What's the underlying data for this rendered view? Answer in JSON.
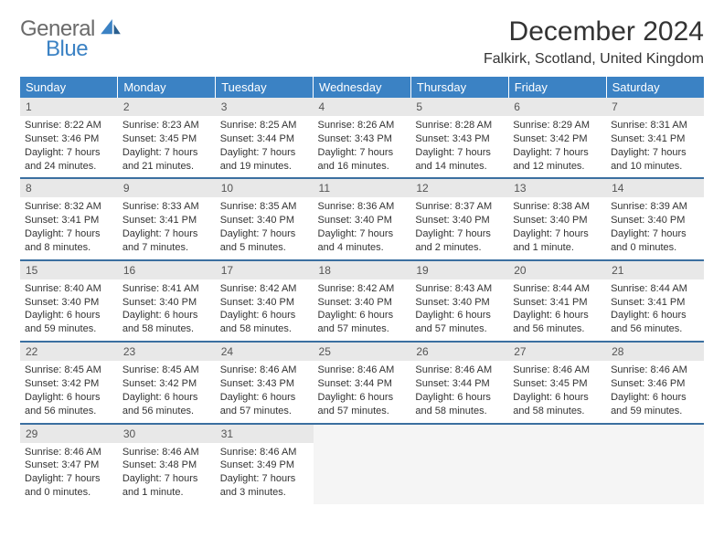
{
  "brand": {
    "general": "General",
    "blue": "Blue"
  },
  "title": "December 2024",
  "location": "Falkirk, Scotland, United Kingdom",
  "colors": {
    "header_bg": "#3b82c4",
    "header_fg": "#ffffff",
    "daynum_bg": "#e8e8e8",
    "rule": "#3b6fa0",
    "logo_gray": "#6b6b6b",
    "logo_blue": "#3b82c4"
  },
  "weekdays": [
    "Sunday",
    "Monday",
    "Tuesday",
    "Wednesday",
    "Thursday",
    "Friday",
    "Saturday"
  ],
  "days": [
    {
      "n": "1",
      "sr": "8:22 AM",
      "ss": "3:46 PM",
      "dl": "7 hours and 24 minutes."
    },
    {
      "n": "2",
      "sr": "8:23 AM",
      "ss": "3:45 PM",
      "dl": "7 hours and 21 minutes."
    },
    {
      "n": "3",
      "sr": "8:25 AM",
      "ss": "3:44 PM",
      "dl": "7 hours and 19 minutes."
    },
    {
      "n": "4",
      "sr": "8:26 AM",
      "ss": "3:43 PM",
      "dl": "7 hours and 16 minutes."
    },
    {
      "n": "5",
      "sr": "8:28 AM",
      "ss": "3:43 PM",
      "dl": "7 hours and 14 minutes."
    },
    {
      "n": "6",
      "sr": "8:29 AM",
      "ss": "3:42 PM",
      "dl": "7 hours and 12 minutes."
    },
    {
      "n": "7",
      "sr": "8:31 AM",
      "ss": "3:41 PM",
      "dl": "7 hours and 10 minutes."
    },
    {
      "n": "8",
      "sr": "8:32 AM",
      "ss": "3:41 PM",
      "dl": "7 hours and 8 minutes."
    },
    {
      "n": "9",
      "sr": "8:33 AM",
      "ss": "3:41 PM",
      "dl": "7 hours and 7 minutes."
    },
    {
      "n": "10",
      "sr": "8:35 AM",
      "ss": "3:40 PM",
      "dl": "7 hours and 5 minutes."
    },
    {
      "n": "11",
      "sr": "8:36 AM",
      "ss": "3:40 PM",
      "dl": "7 hours and 4 minutes."
    },
    {
      "n": "12",
      "sr": "8:37 AM",
      "ss": "3:40 PM",
      "dl": "7 hours and 2 minutes."
    },
    {
      "n": "13",
      "sr": "8:38 AM",
      "ss": "3:40 PM",
      "dl": "7 hours and 1 minute."
    },
    {
      "n": "14",
      "sr": "8:39 AM",
      "ss": "3:40 PM",
      "dl": "7 hours and 0 minutes."
    },
    {
      "n": "15",
      "sr": "8:40 AM",
      "ss": "3:40 PM",
      "dl": "6 hours and 59 minutes."
    },
    {
      "n": "16",
      "sr": "8:41 AM",
      "ss": "3:40 PM",
      "dl": "6 hours and 58 minutes."
    },
    {
      "n": "17",
      "sr": "8:42 AM",
      "ss": "3:40 PM",
      "dl": "6 hours and 58 minutes."
    },
    {
      "n": "18",
      "sr": "8:42 AM",
      "ss": "3:40 PM",
      "dl": "6 hours and 57 minutes."
    },
    {
      "n": "19",
      "sr": "8:43 AM",
      "ss": "3:40 PM",
      "dl": "6 hours and 57 minutes."
    },
    {
      "n": "20",
      "sr": "8:44 AM",
      "ss": "3:41 PM",
      "dl": "6 hours and 56 minutes."
    },
    {
      "n": "21",
      "sr": "8:44 AM",
      "ss": "3:41 PM",
      "dl": "6 hours and 56 minutes."
    },
    {
      "n": "22",
      "sr": "8:45 AM",
      "ss": "3:42 PM",
      "dl": "6 hours and 56 minutes."
    },
    {
      "n": "23",
      "sr": "8:45 AM",
      "ss": "3:42 PM",
      "dl": "6 hours and 56 minutes."
    },
    {
      "n": "24",
      "sr": "8:46 AM",
      "ss": "3:43 PM",
      "dl": "6 hours and 57 minutes."
    },
    {
      "n": "25",
      "sr": "8:46 AM",
      "ss": "3:44 PM",
      "dl": "6 hours and 57 minutes."
    },
    {
      "n": "26",
      "sr": "8:46 AM",
      "ss": "3:44 PM",
      "dl": "6 hours and 58 minutes."
    },
    {
      "n": "27",
      "sr": "8:46 AM",
      "ss": "3:45 PM",
      "dl": "6 hours and 58 minutes."
    },
    {
      "n": "28",
      "sr": "8:46 AM",
      "ss": "3:46 PM",
      "dl": "6 hours and 59 minutes."
    },
    {
      "n": "29",
      "sr": "8:46 AM",
      "ss": "3:47 PM",
      "dl": "7 hours and 0 minutes."
    },
    {
      "n": "30",
      "sr": "8:46 AM",
      "ss": "3:48 PM",
      "dl": "7 hours and 1 minute."
    },
    {
      "n": "31",
      "sr": "8:46 AM",
      "ss": "3:49 PM",
      "dl": "7 hours and 3 minutes."
    }
  ],
  "labels": {
    "sunrise": "Sunrise: ",
    "sunset": "Sunset: ",
    "daylight": "Daylight: "
  }
}
